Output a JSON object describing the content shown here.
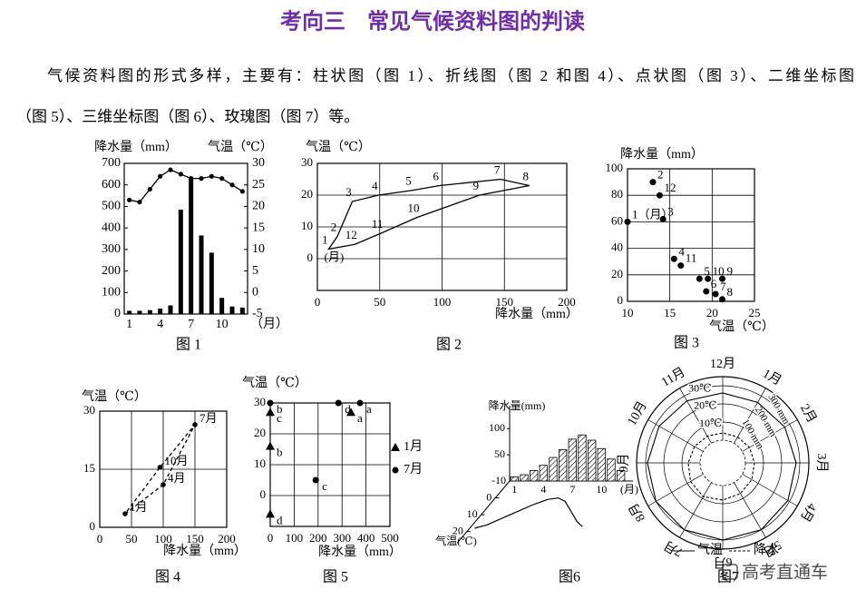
{
  "title": "考向三　常见气候资料图的判读",
  "paragraph": [
    "气候资料图的形式多样，主要有：柱状图（图 1）、折线图（图 2 和图 4）、点状图（图 3）、二维坐标图",
    "（图 5）、三维坐标图（图 6）、玫瑰图（图 7）等。"
  ],
  "chart_data": [
    {
      "type": "bar-line",
      "caption": "图 1",
      "y_label": "降水量（mm）",
      "y2_label": "气温（℃）",
      "x_unit": "（月）",
      "categories": [
        "1",
        null,
        null,
        "4",
        null,
        null,
        "7",
        null,
        null,
        "10",
        null,
        null
      ],
      "series": [
        {
          "type": "bar",
          "color": "#000000",
          "values": [
            15,
            15,
            18,
            25,
            40,
            485,
            635,
            365,
            285,
            75,
            35,
            30
          ]
        },
        {
          "type": "line",
          "color": "#000000",
          "axis": "y2",
          "values": [
            21.5,
            21,
            24,
            27,
            28.5,
            27.5,
            26.5,
            26.5,
            27,
            26.5,
            25,
            23.5
          ]
        }
      ],
      "ylim": [
        0,
        700
      ],
      "yticks": [
        0,
        100,
        200,
        300,
        400,
        500,
        600,
        700
      ],
      "y2lim": [
        -5,
        30
      ],
      "y2ticks": [
        -5,
        0,
        5,
        10,
        15,
        20,
        25,
        30
      ]
    },
    {
      "type": "line",
      "caption": "图 2",
      "x_label": "降水量（mm）",
      "y_label": "气温（℃）",
      "unit_label": "(月)",
      "point_labels": [
        "1",
        "2",
        "3",
        "4",
        "5",
        "6",
        "7",
        "8",
        "9",
        "10",
        "11",
        "12"
      ],
      "x": [
        9,
        16,
        28,
        49,
        76,
        98,
        147,
        170,
        130,
        80,
        51,
        30
      ],
      "values": [
        3,
        7,
        18,
        20,
        21.5,
        23,
        25,
        23,
        20,
        13,
        8,
        4.5
      ],
      "closed": true,
      "markers": false,
      "dashed": false,
      "color": "#000000",
      "xlim": [
        0,
        200
      ],
      "xticks": [
        0,
        50,
        100,
        150,
        200
      ],
      "ylim": [
        -10,
        30
      ],
      "yticks": [
        0,
        10,
        20,
        30
      ],
      "grid": true
    },
    {
      "type": "scatter",
      "caption": "图 3",
      "x_label": "气温（℃）",
      "y_label": "降水量（mm）",
      "point_labels": [
        "1（月）",
        "2",
        "3",
        "4",
        "5",
        "6",
        "7",
        "8",
        "9",
        "10",
        "11",
        "12"
      ],
      "series": [
        {
          "marker": "circle",
          "color": "#000000",
          "x": [
            10,
            13,
            14.2,
            15.5,
            18.5,
            19.3,
            20.4,
            21.2,
            21.2,
            19.5,
            16.3,
            13.8
          ],
          "values": [
            60,
            90,
            62,
            32,
            17,
            7.5,
            5.5,
            1.5,
            17,
            17,
            27,
            80
          ]
        }
      ],
      "xlim": [
        10,
        25
      ],
      "xticks": [
        10,
        15,
        20,
        25
      ],
      "ylim": [
        0,
        100
      ],
      "yticks": [
        0,
        20,
        40,
        60,
        80,
        100
      ],
      "grid": true
    },
    {
      "type": "line",
      "caption": "图 4",
      "x_label": "降水量（mm）",
      "y_label": "气温（℃）",
      "point_labels": [
        "1月",
        "4月",
        "7月",
        "10月"
      ],
      "x": [
        40,
        100,
        150,
        95
      ],
      "values": [
        3.5,
        11,
        26.5,
        15.5
      ],
      "closed": true,
      "markers": true,
      "dashed": true,
      "color": "#000000",
      "xlim": [
        0,
        200
      ],
      "xticks": [
        0,
        50,
        100,
        150,
        200
      ],
      "ylim": [
        0,
        30
      ],
      "yticks": [
        0,
        15,
        30
      ],
      "grid": true
    },
    {
      "type": "scatter",
      "caption": "图 5",
      "x_label": "降水量（mm）",
      "y_label": "气温（℃）",
      "point_labels": [
        "a",
        "b",
        "c",
        "d"
      ],
      "series": [
        {
          "name": "1月",
          "marker": "triangle",
          "color": "#000000",
          "x": [
            337,
            0,
            0,
            0
          ],
          "values": [
            27,
            16,
            27,
            -6
          ]
        },
        {
          "name": "7月",
          "marker": "circle",
          "color": "#000000",
          "x": [
            375,
            0,
            190,
            285
          ],
          "values": [
            30,
            30,
            5,
            30
          ]
        }
      ],
      "xlim": [
        0,
        500
      ],
      "xticks": [
        0,
        100,
        200,
        300,
        400,
        500
      ],
      "ylim": [
        -10,
        30
      ],
      "yticks": [
        0,
        10,
        20,
        30
      ],
      "grid": true
    },
    {
      "type": "bar3d",
      "caption": "图6",
      "y_label": "降水量(mm)",
      "z_label": "气温(℃)",
      "x_unit": "(月)",
      "categories": [
        "1",
        null,
        null,
        "4",
        null,
        null,
        "7",
        null,
        null,
        "10",
        null,
        null
      ],
      "values": [
        8,
        12,
        20,
        30,
        45,
        60,
        80,
        88,
        78,
        62,
        42,
        20
      ],
      "temperature": [
        18,
        16,
        12,
        8,
        4,
        1,
        0,
        2,
        6,
        10,
        14,
        17
      ],
      "ylim": [
        0,
        130
      ],
      "yticks": [
        50,
        100
      ],
      "zlim": [
        -10,
        25
      ],
      "zticks": [
        -10,
        0,
        10,
        20
      ]
    },
    {
      "type": "polar",
      "caption": "图7",
      "categories": [
        "1月",
        "2月",
        "3月",
        "4月",
        "5月",
        "6月",
        "7月",
        "8月",
        "9月",
        "10月",
        "11月",
        "12月"
      ],
      "series": [
        {
          "name": "气温",
          "dashed": false,
          "values": [
            26,
            27,
            28,
            29,
            30,
            30,
            30,
            30,
            29,
            28,
            27,
            26
          ]
        },
        {
          "name": "降水",
          "dashed": true,
          "axis": "r2",
          "values": [
            40,
            45,
            50,
            60,
            70,
            80,
            90,
            80,
            65,
            55,
            45,
            40
          ]
        }
      ],
      "rlim": [
        0,
        35
      ],
      "rticks": [
        {
          "value": 10,
          "label": "10℃"
        },
        {
          "value": 20,
          "label": "20℃"
        },
        {
          "value": 30,
          "label": "30℃"
        }
      ],
      "r2lim": [
        0,
        350
      ],
      "r2ticks": [
        {
          "value": 100,
          "label": "100 mm"
        },
        {
          "value": 200,
          "label": "200 mm"
        },
        {
          "value": 300,
          "label": "300 mm"
        }
      ]
    }
  ],
  "watermark": "高考直通车"
}
